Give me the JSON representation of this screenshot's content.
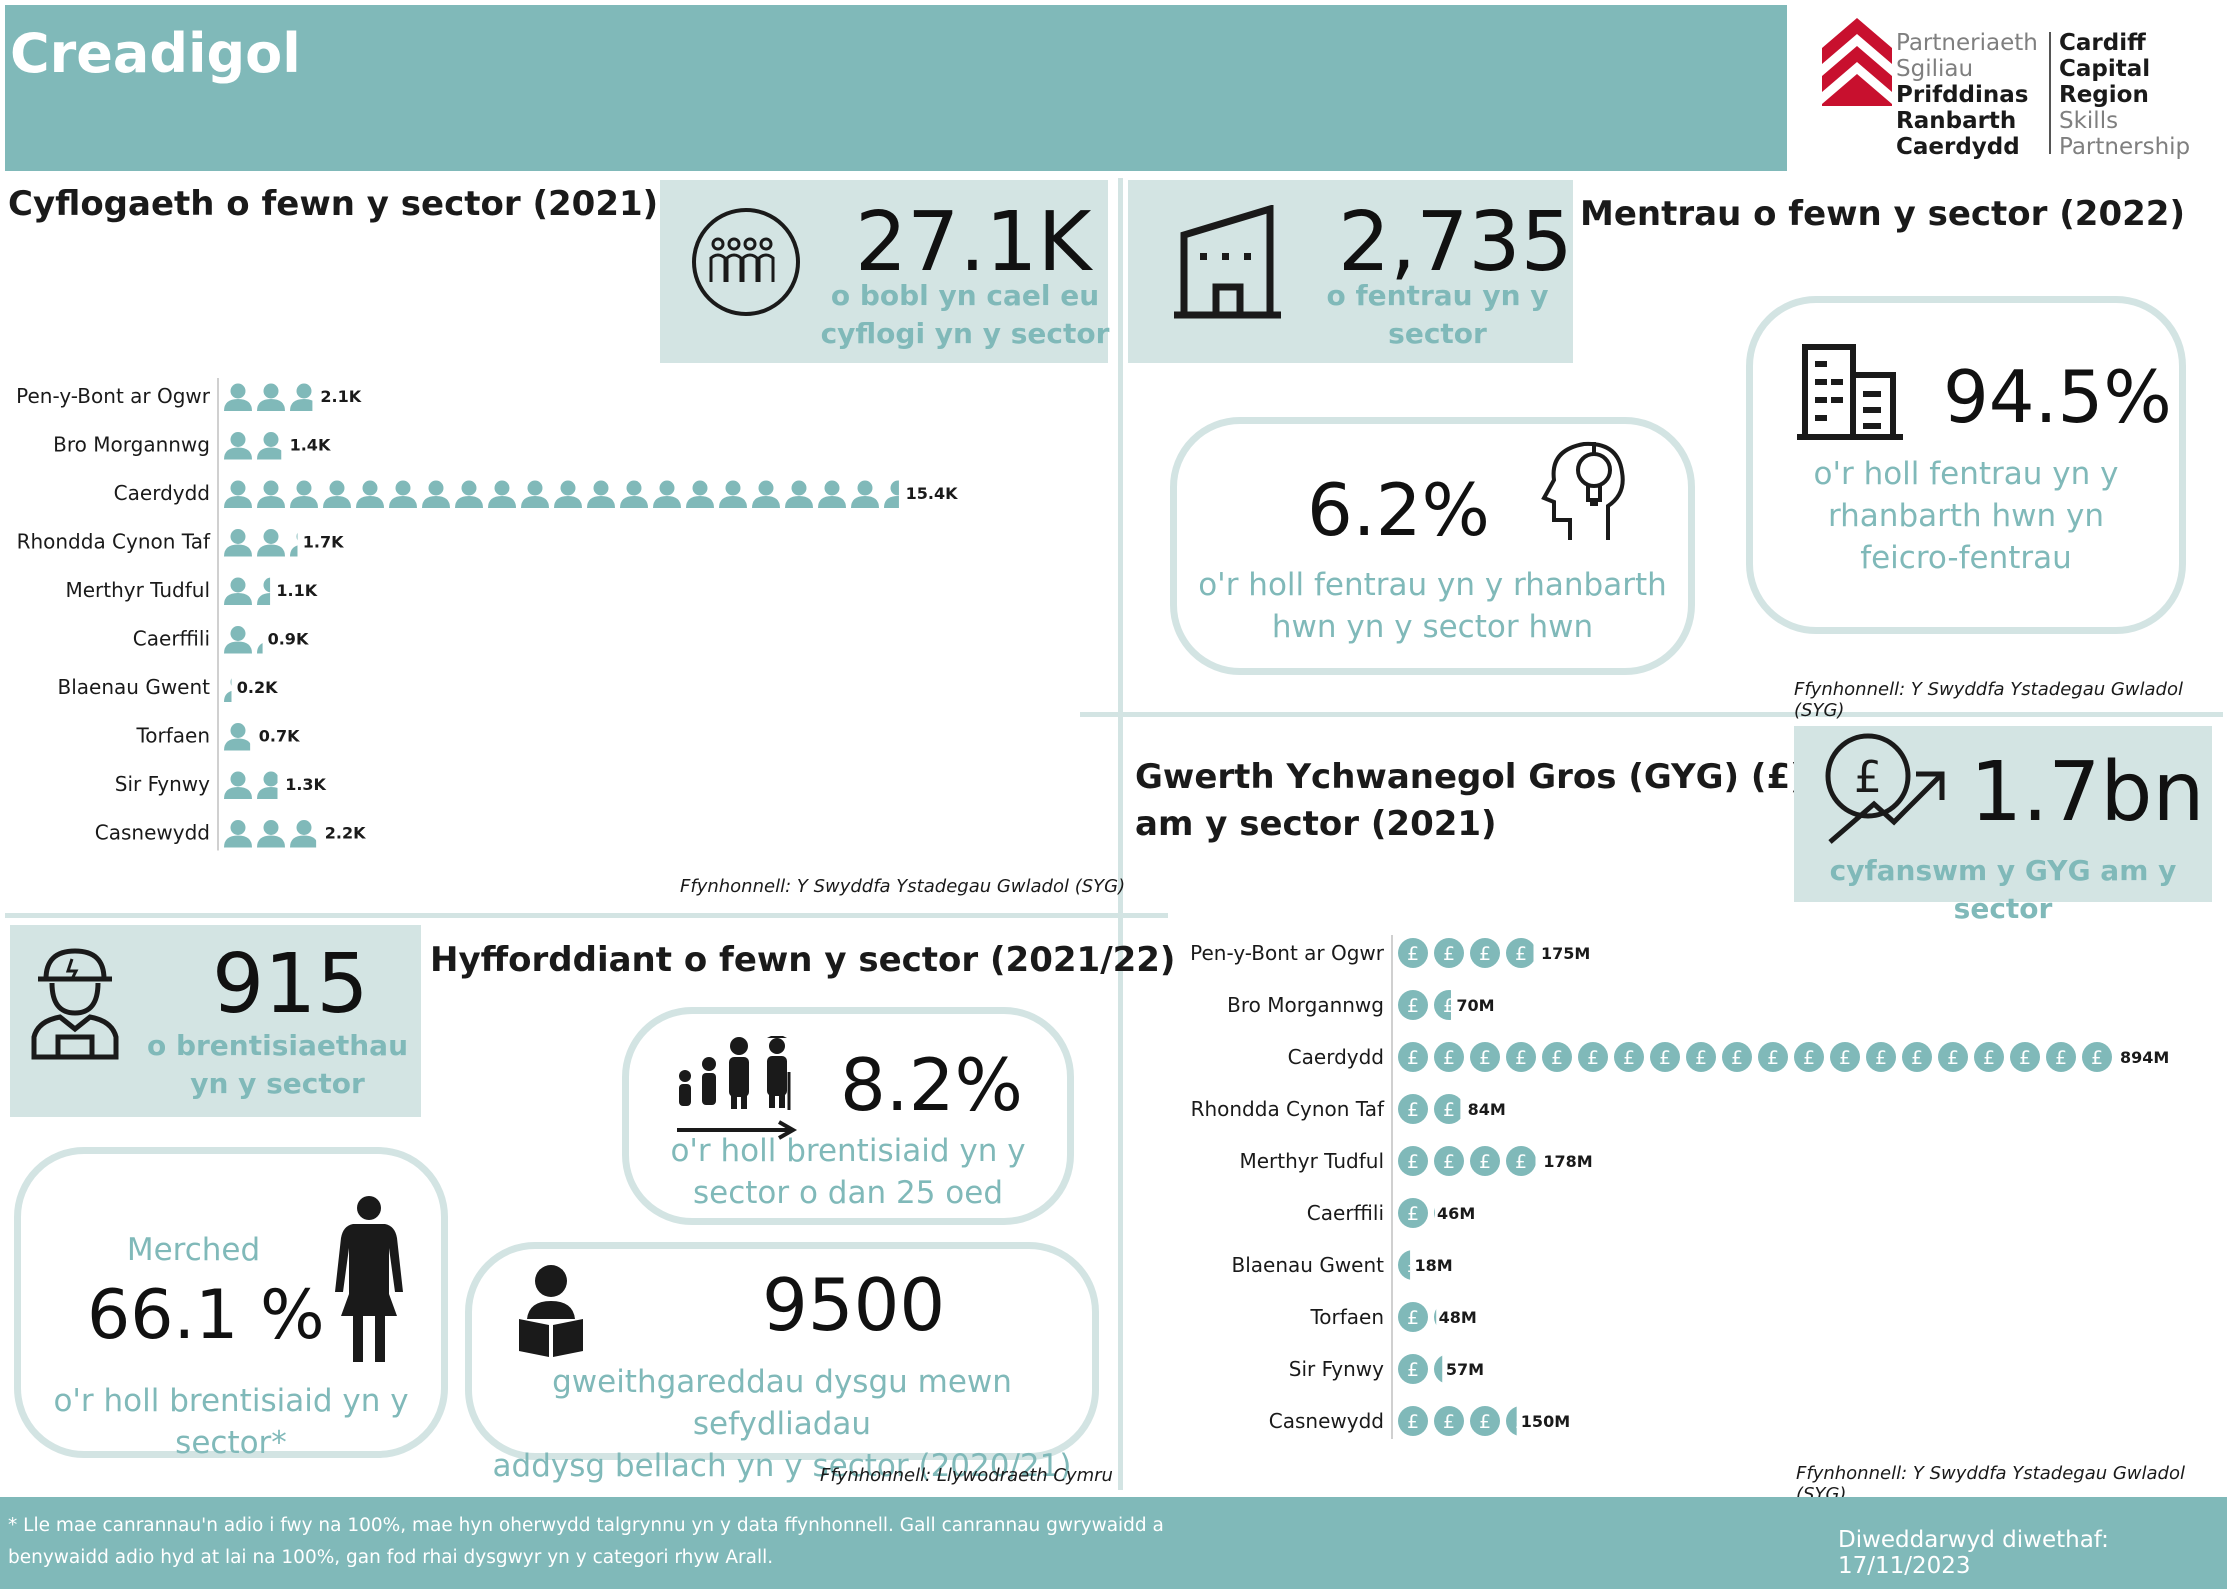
{
  "header": {
    "title": "Creadigol",
    "logo_cy": [
      "Partneriaeth",
      "Sgiliau",
      "Prifddinas",
      "Ranbarth",
      "Caerdydd"
    ],
    "logo_en": [
      "Cardiff",
      "Capital",
      "Region",
      "Skills",
      "Partnership"
    ]
  },
  "employment": {
    "title": "Cyflogaeth o fewn y sector (2021)",
    "kpi_value": "27.1K",
    "kpi_label_1": "o bobl yn cael eu",
    "kpi_label_2": "cyflogi yn y sector",
    "source": "Ffynhonnell: Y Swyddfa Ystadegau Gwladol (SYG)"
  },
  "enterprises": {
    "title": "Mentrau o fewn y sector (2022)",
    "kpi_value": "2,735",
    "kpi_label_1": "o fentrau yn y",
    "kpi_label_2": "sector",
    "share_value": "6.2%",
    "share_label_1": "o'r holl fentrau yn y rhanbarth",
    "share_label_2": "hwn yn y sector hwn",
    "micro_value": "94.5%",
    "micro_label_1": "o'r holl fentrau yn y",
    "micro_label_2": "rhanbarth hwn yn",
    "micro_label_3": "feicro-fentrau",
    "source": "Ffynhonnell: Y Swyddfa Ystadegau Gwladol (SYG)"
  },
  "gva": {
    "title_1": "Gwerth Ychwanegol Gros (GYG) (£)",
    "title_2": "am y sector (2021)",
    "kpi_value": "1.7bn",
    "kpi_label": "cyfanswm y GYG am y sector",
    "source": "Ffynhonnell: Y Swyddfa Ystadegau Gwladol (SYG)"
  },
  "training": {
    "title": "Hyfforddiant o fewn y sector (2021/22)",
    "apprent_value": "915",
    "apprent_label_1": "o brentisiaethau",
    "apprent_label_2": "yn y sector",
    "under25_value": "8.2%",
    "under25_label_1": "o'r holl brentisiaid yn y",
    "under25_label_2": "sector o dan 25 oed",
    "women_heading": "Merched",
    "women_value": "66.1 %",
    "women_label_1": "o'r holl brentisiaid yn y",
    "women_label_2": "sector*",
    "fe_value": "9500",
    "fe_label_1": "gweithgareddau dysgu mewn sefydliadau",
    "fe_label_2": "addysg bellach yn y sector (2020/21)",
    "source": "Ffynhonnell: Llywodraeth Cymru"
  },
  "footer": {
    "note_1": "* Lle mae canrannau'n adio i fwy na 100%, mae hyn oherwydd talgrynnu yn y data ffynhonnell. Gall canrannau gwrywaidd a",
    "note_2": "benywaidd adio hyd at lai na 100%, gan fod rhai dysgwyr yn y categori rhyw Arall.",
    "updated": "Diweddarwyd diwethaf: 17/11/2023"
  },
  "colors": {
    "teal": "#80b9b9",
    "pale": "#d3e4e3",
    "dark": "#1a1a1a"
  },
  "chart_data": [
    {
      "type": "bar",
      "title": "Cyflogaeth o fewn y sector (2021)",
      "unit_icon": "person-icon",
      "icon_unit_value": 0.75,
      "categories": [
        "Pen-y-Bont ar Ogwr",
        "Bro Morgannwg",
        "Caerdydd",
        "Rhondda Cynon Taf",
        "Merthyr Tudful",
        "Caerffili",
        "Blaenau Gwent",
        "Torfaen",
        "Sir Fynwy",
        "Casnewydd"
      ],
      "values": [
        2.1,
        1.4,
        15.4,
        1.7,
        1.1,
        0.9,
        0.2,
        0.7,
        1.3,
        2.2
      ],
      "data_labels": [
        "2.1K",
        "1.4K",
        "15.4K",
        "1.7K",
        "1.1K",
        "0.9K",
        "0.2K",
        "0.7K",
        "1.3K",
        "2.2K"
      ]
    },
    {
      "type": "bar",
      "title": "Gwerth Ychwanegol Gros (GYG) (£) am y sector (2021)",
      "unit_icon": "pound-coin-icon",
      "icon_unit_value": 44.7,
      "categories": [
        "Pen-y-Bont ar Ogwr",
        "Bro Morgannwg",
        "Caerdydd",
        "Rhondda Cynon Taf",
        "Merthyr Tudful",
        "Caerffili",
        "Blaenau Gwent",
        "Torfaen",
        "Sir Fynwy",
        "Casnewydd"
      ],
      "values": [
        175,
        70,
        894,
        84,
        178,
        46,
        18,
        48,
        57,
        150
      ],
      "data_labels": [
        "175M",
        "70M",
        "894M",
        "84M",
        "178M",
        "46M",
        "18M",
        "48M",
        "57M",
        "150M"
      ]
    }
  ]
}
